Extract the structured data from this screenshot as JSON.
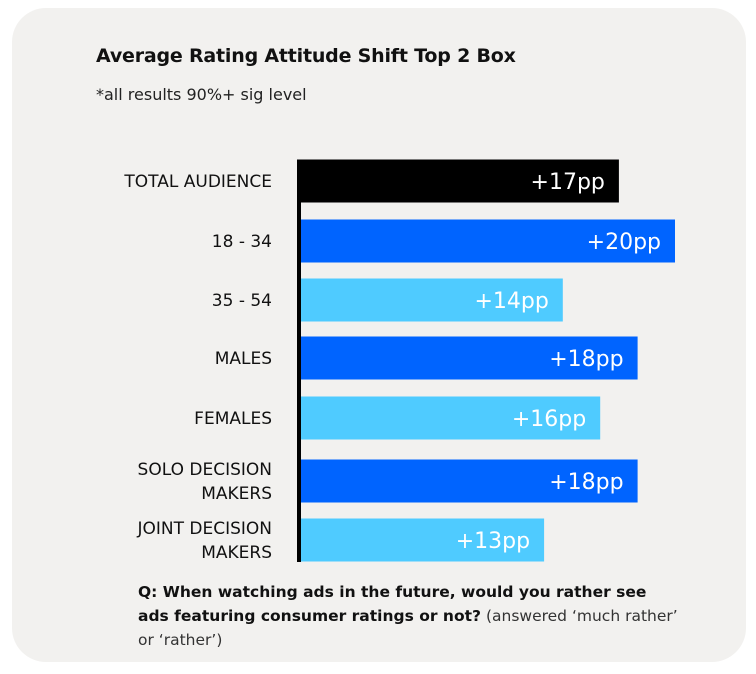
{
  "chart_data": {
    "type": "bar",
    "orientation": "horizontal",
    "title": "Average Rating Attitude Shift Top 2 Box",
    "subtitle": "*all results 90%+ sig level",
    "categories": [
      [
        "TOTAL AUDIENCE"
      ],
      [
        "18 - 34"
      ],
      [
        "35 - 54"
      ],
      [
        "MALES"
      ],
      [
        "FEMALES"
      ],
      [
        "SOLO DECISION",
        "MAKERS"
      ],
      [
        "JOINT DECISION",
        "MAKERS"
      ]
    ],
    "values": [
      17,
      20,
      14,
      18,
      16,
      18,
      13
    ],
    "data_labels": [
      "+17pp",
      "+20pp",
      "+14pp",
      "+18pp",
      "+16pp",
      "+18pp",
      "+13pp"
    ],
    "unit": "pp",
    "colors": [
      "#000000",
      "#0064ff",
      "#4fcbff",
      "#0064ff",
      "#4fcbff",
      "#0064ff",
      "#4fcbff"
    ],
    "xlim": [
      0,
      20
    ],
    "grid": false
  },
  "footnote": {
    "question": "Q: When watching ads in the future, would you rather see ads featuring consumer ratings or not?",
    "note": "(answered ‘much rather’ or ‘rather’)"
  }
}
